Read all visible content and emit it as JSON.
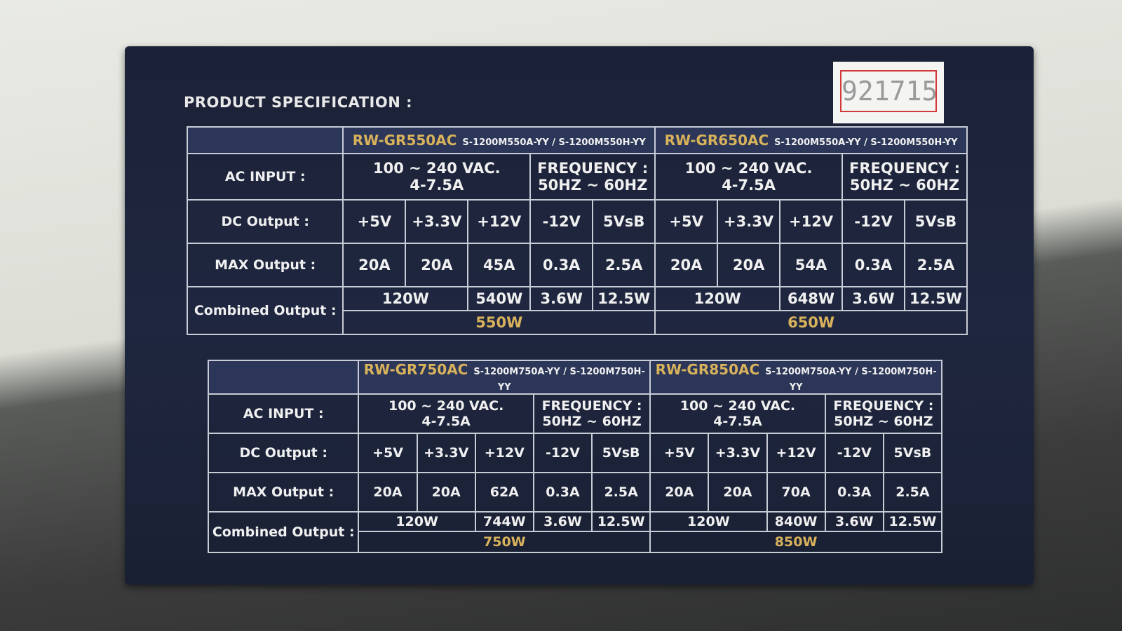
{
  "heading": "PRODUCT SPECIFICATION :",
  "sticker": "921715",
  "tables": [
    {
      "labels": {
        "ac_input": "AC INPUT :",
        "dc_output": "DC Output :",
        "max_output": "MAX Output :",
        "combined_output": "Combined Output :"
      },
      "models": [
        {
          "name": "RW-GR550AC",
          "part": "S-1200M550A-YY / S-1200M550H-YY",
          "ac_voltage": "100 ~ 240 VAC.",
          "ac_current": "4-7.5A",
          "frequency_label": "FREQUENCY :",
          "frequency": "50HZ ~ 60HZ",
          "dc": [
            "+5V",
            "+3.3V",
            "+12V",
            "-12V",
            "5VsB"
          ],
          "max": [
            "20A",
            "20A",
            "45A",
            "0.3A",
            "2.5A"
          ],
          "combined": [
            "120W",
            "540W",
            "3.6W",
            "12.5W"
          ],
          "total": "550W"
        },
        {
          "name": "RW-GR650AC",
          "part": "S-1200M550A-YY / S-1200M550H-YY",
          "ac_voltage": "100 ~ 240 VAC.",
          "ac_current": "4-7.5A",
          "frequency_label": "FREQUENCY :",
          "frequency": "50HZ ~ 60HZ",
          "dc": [
            "+5V",
            "+3.3V",
            "+12V",
            "-12V",
            "5VsB"
          ],
          "max": [
            "20A",
            "20A",
            "54A",
            "0.3A",
            "2.5A"
          ],
          "combined": [
            "120W",
            "648W",
            "3.6W",
            "12.5W"
          ],
          "total": "650W"
        }
      ]
    },
    {
      "labels": {
        "ac_input": "AC INPUT :",
        "dc_output": "DC Output :",
        "max_output": "MAX Output :",
        "combined_output": "Combined Output :"
      },
      "models": [
        {
          "name": "RW-GR750AC",
          "part": "S-1200M750A-YY / S-1200M750H-YY",
          "ac_voltage": "100 ~ 240 VAC.",
          "ac_current": "4-7.5A",
          "frequency_label": "FREQUENCY :",
          "frequency": "50HZ ~ 60HZ",
          "dc": [
            "+5V",
            "+3.3V",
            "+12V",
            "-12V",
            "5VsB"
          ],
          "max": [
            "20A",
            "20A",
            "62A",
            "0.3A",
            "2.5A"
          ],
          "combined": [
            "120W",
            "744W",
            "3.6W",
            "12.5W"
          ],
          "total": "750W"
        },
        {
          "name": "RW-GR850AC",
          "part": "S-1200M750A-YY / S-1200M750H-YY",
          "ac_voltage": "100 ~ 240 VAC.",
          "ac_current": "4-7.5A",
          "frequency_label": "FREQUENCY :",
          "frequency": "50HZ ~ 60HZ",
          "dc": [
            "+5V",
            "+3.3V",
            "+12V",
            "-12V",
            "5VsB"
          ],
          "max": [
            "20A",
            "20A",
            "70A",
            "0.3A",
            "2.5A"
          ],
          "combined": [
            "120W",
            "840W",
            "3.6W",
            "12.5W"
          ],
          "total": "850W"
        }
      ]
    }
  ]
}
